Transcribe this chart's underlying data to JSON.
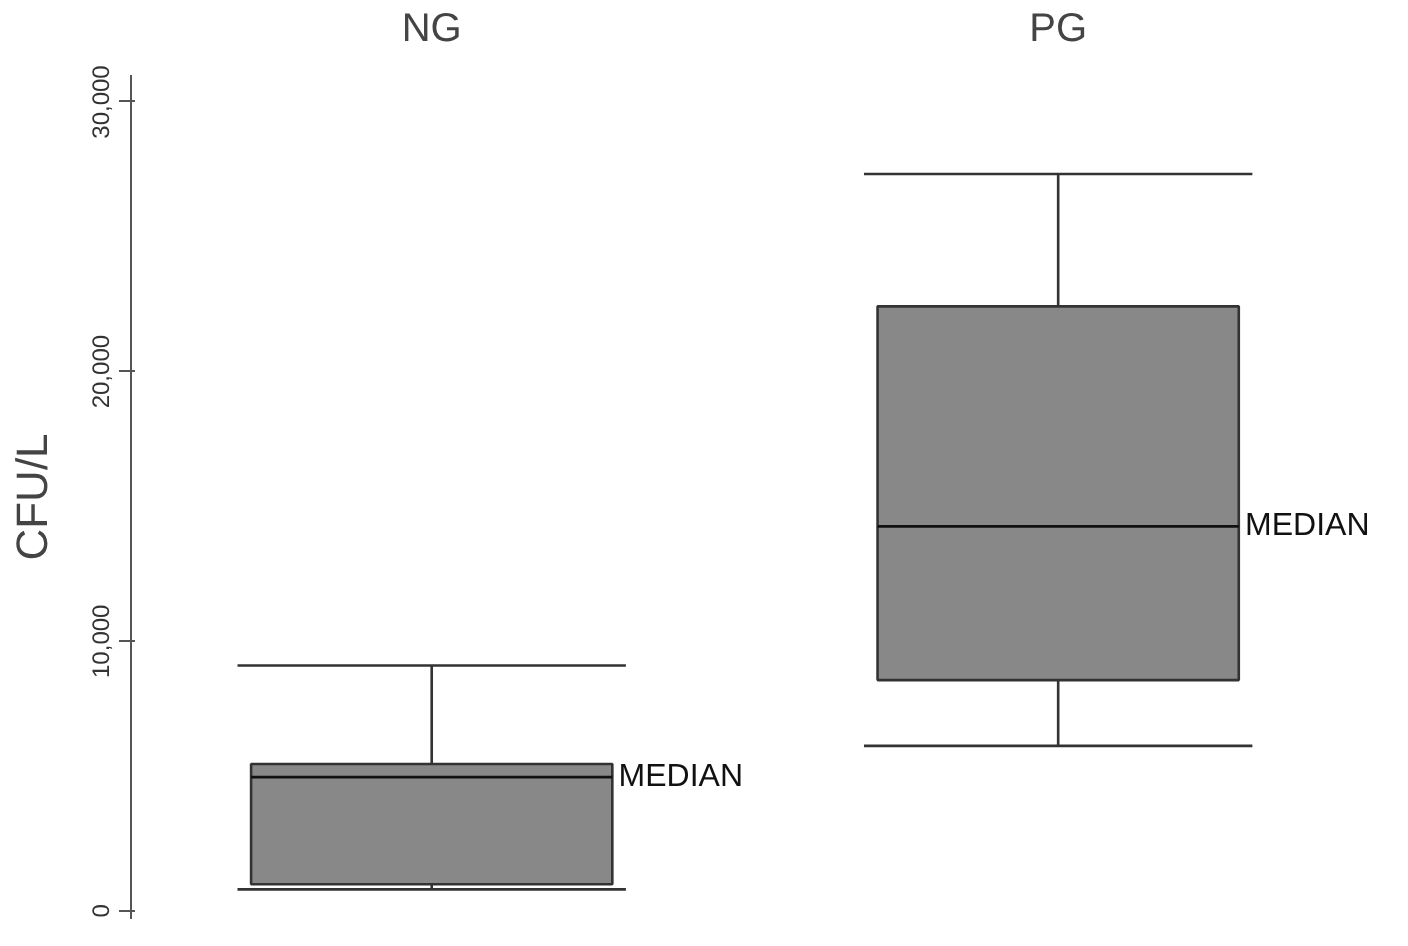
{
  "chart_data": {
    "type": "box",
    "categories": [
      "NG",
      "PG"
    ],
    "ylabel": "CFU/L",
    "ylim": [
      -300,
      31000
    ],
    "yticks": [
      {
        "value": 0,
        "label": "0"
      },
      {
        "value": 10000,
        "label": "10,000"
      },
      {
        "value": 20000,
        "label": "20,000"
      },
      {
        "value": 30000,
        "label": "30,000"
      }
    ],
    "color": "#888888",
    "grid": false,
    "boxes": [
      {
        "low": 800,
        "q1": 990,
        "median": 4960,
        "q3": 5450,
        "high": 9100
      },
      {
        "low": 6120,
        "q1": 8560,
        "median": 14260,
        "q3": 22420,
        "high": 27330
      }
    ],
    "annotations": [
      "MEDIAN",
      "MEDIAN"
    ]
  }
}
